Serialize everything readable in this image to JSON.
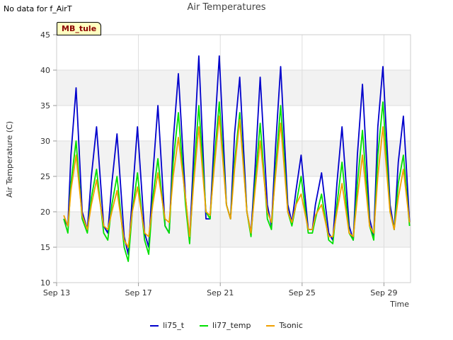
{
  "note": "No data for f_AirT",
  "tag": "MB_tule",
  "chart_data": {
    "type": "line",
    "title": "Air Temperatures",
    "xlabel": "Time",
    "ylabel": "Air Temperature (C)",
    "ylim": [
      10,
      45
    ],
    "yticks": [
      10,
      15,
      20,
      25,
      30,
      35,
      40,
      45
    ],
    "xlim_day": [
      13,
      30.3
    ],
    "xticks": [
      {
        "day": 13,
        "label": "Sep 13"
      },
      {
        "day": 17,
        "label": "Sep 17"
      },
      {
        "day": 21,
        "label": "Sep 21"
      },
      {
        "day": 25,
        "label": "Sep 25"
      },
      {
        "day": 29,
        "label": "Sep 29"
      }
    ],
    "grid": true,
    "legend": "bottom",
    "series": [
      {
        "name": "li75_t",
        "color": "#0000cc",
        "x": [
          13.35,
          13.55,
          13.7,
          13.95,
          14.25,
          14.5,
          14.7,
          14.95,
          15.3,
          15.5,
          15.7,
          15.95,
          16.3,
          16.5,
          16.7,
          16.95,
          17.3,
          17.5,
          17.7,
          17.95,
          18.3,
          18.5,
          18.7,
          18.95,
          19.3,
          19.5,
          19.7,
          19.95,
          20.3,
          20.5,
          20.7,
          20.95,
          21.3,
          21.5,
          21.7,
          21.95,
          22.3,
          22.5,
          22.7,
          22.95,
          23.3,
          23.5,
          23.7,
          23.95,
          24.3,
          24.5,
          24.7,
          24.95,
          25.3,
          25.5,
          25.65,
          25.95,
          26.3,
          26.5,
          26.7,
          26.95,
          27.3,
          27.5,
          27.7,
          27.95,
          28.3,
          28.5,
          28.7,
          28.95,
          29.3,
          29.5,
          29.7,
          29.95,
          30.25
        ],
        "y": [
          19,
          18,
          28,
          37.5,
          20,
          17.5,
          25,
          32,
          18,
          17,
          24,
          31,
          16.5,
          14,
          22,
          32,
          17,
          15,
          25,
          35,
          18,
          17,
          30,
          39.5,
          22,
          16,
          28,
          42,
          19,
          19,
          30,
          42,
          21,
          19,
          31,
          39,
          20,
          17,
          26,
          39,
          21,
          18,
          29,
          40.5,
          21,
          18.5,
          23,
          28,
          17.5,
          17.5,
          21,
          25.5,
          17,
          16,
          24,
          32,
          18,
          16,
          28,
          38,
          19,
          16.5,
          32,
          40.5,
          21,
          17.5,
          27,
          33.5,
          18.5
        ]
      },
      {
        "name": "li77_temp",
        "color": "#00e000",
        "x": [
          13.35,
          13.55,
          13.7,
          13.95,
          14.25,
          14.5,
          14.7,
          14.95,
          15.3,
          15.5,
          15.7,
          15.95,
          16.3,
          16.5,
          16.7,
          16.95,
          17.3,
          17.5,
          17.7,
          17.95,
          18.3,
          18.5,
          18.7,
          18.95,
          19.3,
          19.5,
          19.7,
          19.95,
          20.3,
          20.5,
          20.7,
          20.95,
          21.3,
          21.5,
          21.7,
          21.95,
          22.3,
          22.5,
          22.7,
          22.95,
          23.3,
          23.5,
          23.7,
          23.95,
          24.3,
          24.5,
          24.7,
          24.95,
          25.3,
          25.5,
          25.65,
          25.95,
          26.3,
          26.5,
          26.7,
          26.95,
          27.3,
          27.5,
          27.7,
          27.95,
          28.3,
          28.5,
          28.7,
          28.95,
          29.3,
          29.5,
          29.7,
          29.95,
          30.25
        ],
        "y": [
          19,
          17,
          24,
          30,
          19,
          17,
          22,
          26,
          17,
          16,
          21,
          25,
          15,
          13,
          20,
          25.5,
          16,
          14,
          22,
          27.5,
          18,
          17,
          27,
          34,
          21,
          15.5,
          25,
          35,
          20,
          19,
          27,
          35.5,
          21,
          19,
          27,
          34,
          20,
          16.5,
          24,
          32.5,
          19,
          17.5,
          26,
          35,
          20,
          18,
          21,
          25,
          17,
          17,
          19,
          22.5,
          16,
          15.5,
          21,
          27,
          17,
          16,
          24,
          31.5,
          18,
          16,
          28,
          35.5,
          20,
          17.5,
          24,
          28,
          18
        ]
      },
      {
        "name": "Tsonic",
        "color": "#f0a000",
        "x": [
          13.35,
          13.55,
          13.7,
          13.95,
          14.25,
          14.5,
          14.7,
          14.95,
          15.3,
          15.5,
          15.7,
          15.95,
          16.3,
          16.5,
          16.7,
          16.95,
          17.3,
          17.5,
          17.7,
          17.95,
          18.3,
          18.5,
          18.7,
          18.95,
          19.3,
          19.5,
          19.7,
          19.95,
          20.3,
          20.5,
          20.7,
          20.95,
          21.3,
          21.5,
          21.7,
          21.95,
          22.3,
          22.5,
          22.7,
          22.95,
          23.3,
          23.5,
          23.7,
          23.95,
          24.3,
          24.5,
          24.7,
          24.95,
          25.3,
          25.5,
          25.65,
          25.95,
          26.3,
          26.5,
          26.7,
          26.95,
          27.3,
          27.5,
          27.7,
          27.95,
          28.3,
          28.5,
          28.7,
          28.95,
          29.3,
          29.5,
          29.7,
          29.95,
          30.25
        ],
        "y": [
          19.5,
          18,
          23,
          28,
          19.5,
          17.5,
          21,
          24.5,
          18,
          17.5,
          20,
          23,
          16,
          15,
          20,
          23.5,
          17,
          16.5,
          21,
          25.5,
          19,
          18.5,
          25,
          30.5,
          22,
          16.5,
          24,
          32,
          20,
          19.5,
          26,
          33.5,
          21,
          19,
          26,
          33,
          20,
          17,
          23,
          30,
          20,
          18.5,
          25,
          32.5,
          20,
          18.5,
          21,
          22.5,
          17.5,
          17.5,
          19.5,
          21,
          16.5,
          16.5,
          20,
          24,
          17,
          16.5,
          22,
          28,
          18,
          17,
          25,
          32,
          20,
          17.5,
          22,
          26,
          18.5
        ]
      }
    ]
  }
}
